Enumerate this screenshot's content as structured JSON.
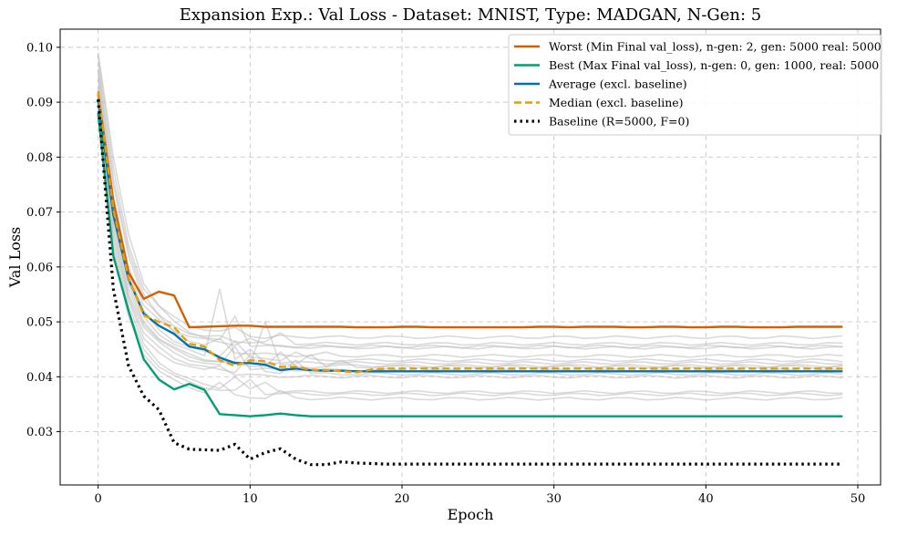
{
  "chart_data": {
    "type": "line",
    "title": "Expansion Exp.: Val Loss - Dataset: MNIST, Type: MADGAN, N-Gen: 5",
    "xlabel": "Epoch",
    "ylabel": "Val Loss",
    "xlim": [
      -2.5,
      51.5
    ],
    "ylim": [
      0.0203,
      0.1033
    ],
    "xticks": [
      0,
      10,
      20,
      30,
      40,
      50
    ],
    "yticks": [
      0.03,
      0.04,
      0.05,
      0.06,
      0.07,
      0.08,
      0.09,
      0.1
    ],
    "xtick_labels": [
      "0",
      "10",
      "20",
      "30",
      "40",
      "50"
    ],
    "ytick_labels": [
      "0.03",
      "0.04",
      "0.05",
      "0.06",
      "0.07",
      "0.08",
      "0.09",
      "0.10"
    ],
    "grid": true,
    "legend_placement": "top-right",
    "colors": {
      "worst": "#d55e00",
      "best": "#009e73",
      "average": "#0072b2",
      "median": "#e69f00",
      "baseline": "#000000",
      "background_runs": "#bbbbbb"
    },
    "epochs_count": 50,
    "series": [
      {
        "name": "Worst (Min Final val_loss), n-gen: 2, gen: 5000 real: 5000",
        "role": "worst",
        "values": [
          0.0915,
          0.072,
          0.059,
          0.0542,
          0.0555,
          0.0548,
          0.049,
          0.0491,
          0.0492,
          0.0493,
          0.0493,
          0.0491,
          0.0491,
          0.0491,
          0.0491,
          0.0491,
          0.0491,
          0.049,
          0.049,
          0.049,
          0.0491,
          0.0491,
          0.049,
          0.049,
          0.049,
          0.049,
          0.049,
          0.049,
          0.049,
          0.0491,
          0.0491,
          0.049,
          0.0491,
          0.0491,
          0.0491,
          0.049,
          0.049,
          0.0491,
          0.0491,
          0.049,
          0.049,
          0.0491,
          0.0491,
          0.049,
          0.049,
          0.049,
          0.0491,
          0.0491,
          0.0491,
          0.0491
        ]
      },
      {
        "name": "Best (Max Final val_loss), n-gen: 0, gen: 1000, real: 5000",
        "role": "best",
        "values": [
          0.088,
          0.062,
          0.052,
          0.0432,
          0.0395,
          0.0377,
          0.0387,
          0.0376,
          0.0332,
          0.033,
          0.0328,
          0.033,
          0.0333,
          0.033,
          0.0328,
          0.0328,
          0.0328,
          0.0328,
          0.0328,
          0.0328,
          0.0328,
          0.0328,
          0.0328,
          0.0328,
          0.0328,
          0.0328,
          0.0328,
          0.0328,
          0.0328,
          0.0328,
          0.0328,
          0.0328,
          0.0328,
          0.0328,
          0.0328,
          0.0328,
          0.0328,
          0.0328,
          0.0328,
          0.0328,
          0.0328,
          0.0328,
          0.0328,
          0.0328,
          0.0328,
          0.0328,
          0.0328,
          0.0328,
          0.0328,
          0.0328
        ]
      },
      {
        "name": "Average (excl. baseline)",
        "role": "average",
        "values": [
          0.0905,
          0.0695,
          0.0578,
          0.0515,
          0.0493,
          0.0478,
          0.0455,
          0.045,
          0.0435,
          0.0425,
          0.0425,
          0.0422,
          0.0412,
          0.0415,
          0.0412,
          0.0411,
          0.0411,
          0.041,
          0.041,
          0.041,
          0.041,
          0.041,
          0.041,
          0.041,
          0.041,
          0.041,
          0.041,
          0.041,
          0.041,
          0.041,
          0.041,
          0.041,
          0.041,
          0.041,
          0.041,
          0.041,
          0.041,
          0.041,
          0.041,
          0.041,
          0.041,
          0.041,
          0.041,
          0.041,
          0.041,
          0.041,
          0.041,
          0.041,
          0.041,
          0.041
        ]
      },
      {
        "name": "Median (excl. baseline)",
        "role": "median",
        "values": [
          0.092,
          0.0705,
          0.058,
          0.0512,
          0.05,
          0.049,
          0.046,
          0.0455,
          0.043,
          0.042,
          0.043,
          0.0428,
          0.0418,
          0.0418,
          0.0413,
          0.0412,
          0.041,
          0.0408,
          0.0413,
          0.0415,
          0.0415,
          0.0415,
          0.0415,
          0.0415,
          0.0415,
          0.0415,
          0.0415,
          0.0415,
          0.0415,
          0.0415,
          0.0415,
          0.0415,
          0.0415,
          0.0415,
          0.0415,
          0.0415,
          0.0415,
          0.0415,
          0.0415,
          0.0415,
          0.0415,
          0.0415,
          0.0415,
          0.0415,
          0.0415,
          0.0415,
          0.0415,
          0.0415,
          0.0415,
          0.0415
        ]
      },
      {
        "name": "Baseline (R=5000, F=0)",
        "role": "baseline",
        "values": [
          0.0905,
          0.056,
          0.042,
          0.0365,
          0.034,
          0.028,
          0.0268,
          0.0267,
          0.0266,
          0.0277,
          0.025,
          0.0262,
          0.0269,
          0.025,
          0.024,
          0.024,
          0.0245,
          0.0243,
          0.0242,
          0.0241,
          0.0241,
          0.0241,
          0.0241,
          0.0241,
          0.0241,
          0.0241,
          0.0241,
          0.0241,
          0.0241,
          0.0241,
          0.0241,
          0.0241,
          0.0241,
          0.0241,
          0.0241,
          0.0241,
          0.0241,
          0.0241,
          0.0241,
          0.0241,
          0.0241,
          0.0241,
          0.0241,
          0.0241,
          0.0241,
          0.0241,
          0.0241,
          0.0241,
          0.0241,
          0.0241
        ]
      }
    ],
    "background_runs": [
      {
        "start": 0.0985,
        "drop": [
          0.078,
          0.064,
          0.056
        ],
        "plateau": 0.0472,
        "bumps": [
          [
            9,
            0.049
          ],
          [
            11,
            0.047
          ]
        ]
      },
      {
        "start": 0.096,
        "drop": [
          0.075,
          0.062,
          0.054
        ],
        "plateau": 0.046,
        "bumps": [
          [
            8,
            0.0475
          ],
          [
            12,
            0.048
          ]
        ]
      },
      {
        "start": 0.095,
        "drop": [
          0.073,
          0.06,
          0.053
        ],
        "plateau": 0.0455,
        "bumps": [
          [
            10,
            0.047
          ]
        ]
      },
      {
        "start": 0.094,
        "drop": [
          0.072,
          0.059,
          0.052
        ],
        "plateau": 0.043,
        "bumps": [
          [
            9,
            0.0465
          ],
          [
            13,
            0.0445
          ]
        ]
      },
      {
        "start": 0.093,
        "drop": [
          0.071,
          0.058,
          0.051
        ],
        "plateau": 0.0425,
        "bumps": [
          [
            8,
            0.056
          ],
          [
            10,
            0.045
          ]
        ]
      },
      {
        "start": 0.092,
        "drop": [
          0.07,
          0.057,
          0.05
        ],
        "plateau": 0.042,
        "bumps": [
          [
            11,
            0.05
          ],
          [
            14,
            0.044
          ]
        ]
      },
      {
        "start": 0.091,
        "drop": [
          0.069,
          0.056,
          0.0495
        ],
        "plateau": 0.0418,
        "bumps": [
          [
            12,
            0.0445
          ],
          [
            16,
            0.043
          ]
        ]
      },
      {
        "start": 0.0905,
        "drop": [
          0.068,
          0.055,
          0.049
        ],
        "plateau": 0.0412,
        "bumps": [
          [
            9,
            0.0455
          ]
        ]
      },
      {
        "start": 0.09,
        "drop": [
          0.067,
          0.0545,
          0.048
        ],
        "plateau": 0.0405,
        "bumps": [
          [
            10,
            0.044
          ],
          [
            13,
            0.043
          ]
        ]
      },
      {
        "start": 0.0895,
        "drop": [
          0.066,
          0.054,
          0.047
        ],
        "plateau": 0.04,
        "bumps": [
          [
            8,
            0.042
          ]
        ]
      },
      {
        "start": 0.089,
        "drop": [
          0.065,
          0.053,
          0.046
        ],
        "plateau": 0.0372,
        "bumps": [
          [
            9,
            0.04
          ],
          [
            11,
            0.039
          ]
        ]
      },
      {
        "start": 0.0885,
        "drop": [
          0.064,
          0.052,
          0.045
        ],
        "plateau": 0.0368,
        "bumps": [
          [
            10,
            0.0395
          ]
        ]
      },
      {
        "start": 0.088,
        "drop": [
          0.063,
          0.051,
          0.044
        ],
        "plateau": 0.036,
        "bumps": [
          [
            8,
            0.039
          ],
          [
            12,
            0.0375
          ]
        ]
      },
      {
        "start": 0.099,
        "drop": [
          0.08,
          0.066,
          0.057
        ],
        "plateau": 0.0453,
        "bumps": [
          [
            9,
            0.051
          ]
        ]
      },
      {
        "start": 0.097,
        "drop": [
          0.076,
          0.063,
          0.055
        ],
        "plateau": 0.0438,
        "bumps": [
          [
            8,
            0.047
          ],
          [
            15,
            0.0445
          ]
        ]
      }
    ]
  }
}
